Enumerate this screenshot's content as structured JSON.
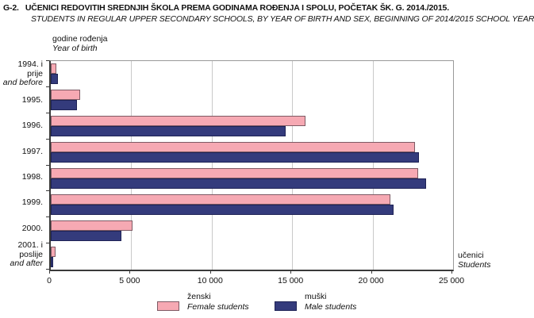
{
  "header": {
    "code": "G-2.",
    "title_hr": "UČENICI REDOVITIH SREDNJIH ŠKOLA PREMA GODINAMA ROĐENJA I SPOLU, POČETAK ŠK. G. 2014./2015.",
    "title_en": "STUDENTS IN REGULAR UPPER SECONDARY SCHOOLS, BY YEAR OF BIRTH AND SEX, BEGINNING OF 2014/2015 SCHOOL YEAR"
  },
  "chart_data": {
    "type": "bar",
    "orientation": "horizontal",
    "y_axis_title_hr": "godine rođenja",
    "y_axis_title_en": "Year of birth",
    "x_axis_title_hr": "učenici",
    "x_axis_title_en": "Students",
    "xlim": [
      0,
      25000
    ],
    "x_tick_values": [
      0,
      5000,
      10000,
      15000,
      20000,
      25000
    ],
    "x_tick_labels": [
      "0",
      "5 000",
      "10 000",
      "15 000",
      "20 000",
      "25 000"
    ],
    "grid": "vertical-gridlines-on",
    "legend_position": "bottom",
    "categories": [
      {
        "hr": "1994. i prije",
        "en": "and before"
      },
      {
        "hr": "1995.",
        "en": ""
      },
      {
        "hr": "1996.",
        "en": ""
      },
      {
        "hr": "1997.",
        "en": ""
      },
      {
        "hr": "1998.",
        "en": ""
      },
      {
        "hr": "1999.",
        "en": ""
      },
      {
        "hr": "2000.",
        "en": ""
      },
      {
        "hr": "2001. i poslije",
        "en": "and after"
      }
    ],
    "series": [
      {
        "id": "female",
        "name_hr": "ženski",
        "name_en": "Female students",
        "fill": "#f6a9b3",
        "border": "#7e5a64",
        "values": [
          350,
          1800,
          15850,
          22650,
          22850,
          21100,
          5100,
          300
        ]
      },
      {
        "id": "male",
        "name_hr": "muški",
        "name_en": "Male students",
        "fill": "#343b7c",
        "border": "#1e2255",
        "values": [
          450,
          1650,
          14600,
          22900,
          23300,
          21300,
          4400,
          150
        ]
      }
    ]
  },
  "style": {
    "gridline_color": "#c9c9c9",
    "axis_color": "#3a3a3a"
  }
}
